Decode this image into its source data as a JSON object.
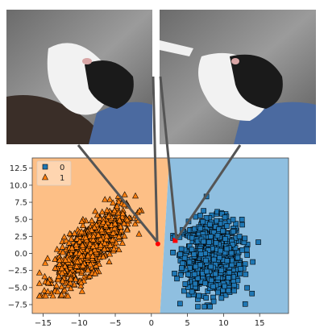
{
  "chart_data": {
    "type": "scatter",
    "title": "",
    "xlabel": "",
    "ylabel": "",
    "xlim": [
      -16.5,
      19
    ],
    "ylim": [
      -8.8,
      14
    ],
    "xticks": [
      -15,
      -10,
      -5,
      0,
      5,
      10,
      15
    ],
    "xtick_labels": [
      "−15",
      "−10",
      "−5",
      "0",
      "5",
      "10",
      "15"
    ],
    "yticks": [
      -7.5,
      -5,
      -2.5,
      0,
      2.5,
      5,
      7.5,
      10,
      12.5
    ],
    "ytick_labels": [
      "−7.5",
      "−5.0",
      "−2.5",
      "0.0",
      "2.5",
      "5.0",
      "7.5",
      "10.0",
      "12.5"
    ],
    "grid": false,
    "legend_placement": "top-left",
    "decision_regions": {
      "boundary": [
        [
          2.5,
          14
        ],
        [
          1.2,
          -8.8
        ]
      ],
      "left_region_class": "1",
      "right_region_class": "0",
      "left_color": "#fdbf86",
      "right_color": "#8fbfe0"
    },
    "series": [
      {
        "name": "0",
        "marker": "square",
        "color": "#1f77b4",
        "count": 900,
        "center": [
          8.5,
          -0.5
        ],
        "spread": [
          2.0,
          2.7
        ],
        "x_range": [
          3.0,
          17.5
        ],
        "y_range": [
          -7.8,
          12.6
        ]
      },
      {
        "name": "1",
        "marker": "triangle",
        "color": "#ff7f0e",
        "count": 900,
        "center": [
          -8.5,
          1.0
        ],
        "spread": [
          2.4,
          2.7
        ],
        "x_range": [
          -15.5,
          0.5
        ],
        "y_range": [
          -6.2,
          10.8
        ],
        "correlated": true
      }
    ],
    "highlighted_points": [
      {
        "x": 0.9,
        "y": 1.4,
        "color": "#ff0000",
        "shape": "circle"
      },
      {
        "x": 3.3,
        "y": 1.9,
        "color": "#ff0000",
        "shape": "square"
      }
    ],
    "insets": [
      {
        "depicts": "photo of a black-and-white dog lying with head tilted up, held on a person's lap",
        "points_to": 0
      },
      {
        "depicts": "photo of the same dog lying with head tilted, nose pointing right",
        "points_to": 1
      }
    ],
    "connector_color": "#555555"
  },
  "legend": {
    "items": [
      {
        "label": "0",
        "color": "#1f77b4",
        "marker": "square"
      },
      {
        "label": "1",
        "color": "#ff7f0e",
        "marker": "triangle"
      }
    ]
  }
}
